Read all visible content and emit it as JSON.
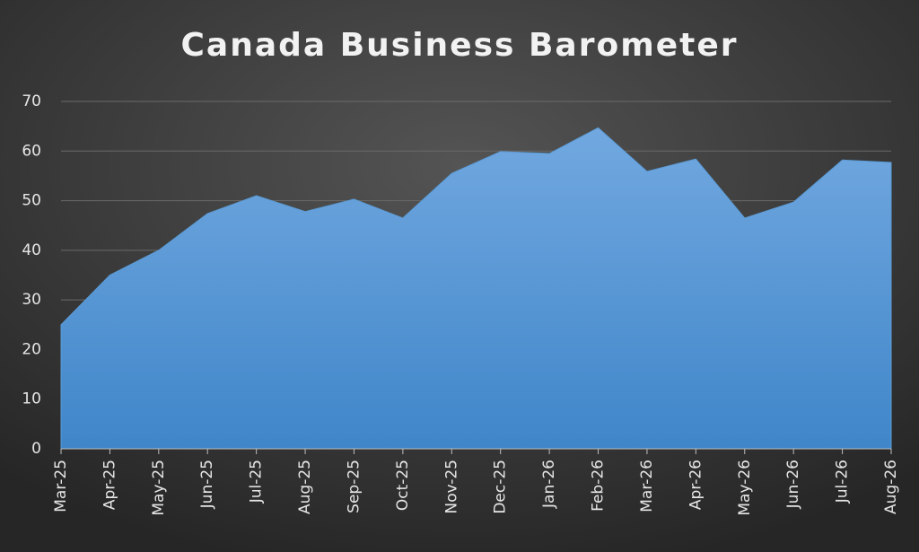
{
  "chart_data": {
    "type": "area",
    "title": "Canada Business Barometer",
    "categories": [
      "Mar-25",
      "Apr-25",
      "May-25",
      "Jun-25",
      "Jul-25",
      "Aug-25",
      "Sep-25",
      "Oct-25",
      "Nov-25",
      "Dec-25",
      "Jan-26",
      "Feb-26",
      "Mar-26",
      "Apr-26",
      "May-26",
      "Jun-26",
      "Jul-26",
      "Aug-26"
    ],
    "values": [
      25,
      35,
      40,
      47.4,
      51,
      47.8,
      50.3,
      46.5,
      55.5,
      59.9,
      59.5,
      64.7,
      55.9,
      58.4,
      46.5,
      49.7,
      58.2,
      57.7
    ],
    "color": "#5b9bd5",
    "ylim": [
      0,
      70
    ],
    "yticks": [
      0,
      10,
      20,
      30,
      40,
      50,
      60,
      70
    ],
    "grid": true
  }
}
